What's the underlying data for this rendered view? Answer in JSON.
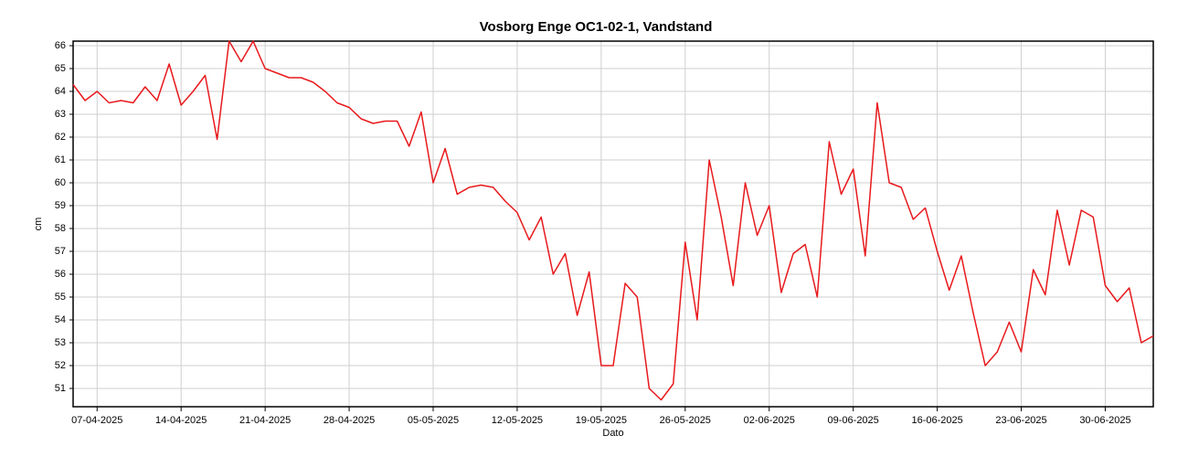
{
  "chart_data": {
    "type": "line",
    "title": "Vosborg Enge OC1-02-1, Vandstand",
    "x_label": "Dato",
    "y_label": "cm",
    "x": [
      "05-04-2025",
      "06-04-2025",
      "07-04-2025",
      "08-04-2025",
      "09-04-2025",
      "10-04-2025",
      "11-04-2025",
      "12-04-2025",
      "13-04-2025",
      "14-04-2025",
      "15-04-2025",
      "16-04-2025",
      "17-04-2025",
      "18-04-2025",
      "19-04-2025",
      "20-04-2025",
      "21-04-2025",
      "22-04-2025",
      "23-04-2025",
      "24-04-2025",
      "25-04-2025",
      "26-04-2025",
      "27-04-2025",
      "28-04-2025",
      "29-04-2025",
      "30-04-2025",
      "01-05-2025",
      "02-05-2025",
      "03-05-2025",
      "04-05-2025",
      "05-05-2025",
      "06-05-2025",
      "07-05-2025",
      "08-05-2025",
      "09-05-2025",
      "10-05-2025",
      "11-05-2025",
      "12-05-2025",
      "13-05-2025",
      "14-05-2025",
      "15-05-2025",
      "16-05-2025",
      "17-05-2025",
      "18-05-2025",
      "19-05-2025",
      "20-05-2025",
      "21-05-2025",
      "22-05-2025",
      "23-05-2025",
      "24-05-2025",
      "25-05-2025",
      "26-05-2025",
      "27-05-2025",
      "28-05-2025",
      "29-05-2025",
      "30-05-2025",
      "31-05-2025",
      "01-06-2025",
      "02-06-2025",
      "03-06-2025",
      "04-06-2025",
      "05-06-2025",
      "06-06-2025",
      "07-06-2025",
      "08-06-2025",
      "09-06-2025",
      "10-06-2025",
      "11-06-2025",
      "12-06-2025",
      "13-06-2025",
      "14-06-2025",
      "15-06-2025",
      "16-06-2025",
      "17-06-2025",
      "18-06-2025",
      "19-06-2025",
      "20-06-2025",
      "21-06-2025",
      "22-06-2025",
      "23-06-2025",
      "24-06-2025",
      "25-06-2025",
      "26-06-2025",
      "27-06-2025",
      "28-06-2025",
      "29-06-2025",
      "30-06-2025",
      "01-07-2025",
      "02-07-2025",
      "03-07-2025",
      "04-07-2025"
    ],
    "series": [
      {
        "name": "Vandstand",
        "color": "#e8191c",
        "values": [
          64.3,
          63.6,
          64.0,
          63.5,
          63.6,
          63.5,
          64.2,
          63.6,
          65.2,
          63.4,
          64.0,
          64.7,
          61.9,
          66.2,
          65.3,
          66.2,
          65.0,
          64.8,
          64.6,
          64.6,
          64.4,
          64.0,
          63.5,
          63.3,
          62.8,
          62.6,
          62.7,
          62.7,
          61.6,
          63.1,
          60.0,
          61.5,
          59.5,
          59.8,
          59.9,
          59.8,
          59.2,
          58.7,
          57.5,
          58.5,
          56.0,
          56.9,
          54.2,
          56.1,
          52.0,
          52.0,
          55.6,
          55.0,
          51.0,
          50.5,
          51.2,
          57.4,
          54.0,
          61.0,
          58.5,
          55.5,
          60.0,
          57.7,
          59.0,
          55.2,
          56.9,
          57.3,
          55.0,
          61.8,
          59.5,
          60.6,
          56.8,
          63.5,
          60.0,
          59.8,
          58.4,
          58.9,
          57.0,
          55.3,
          56.8,
          54.3,
          52.0,
          52.6,
          53.9,
          52.6,
          56.2,
          55.1,
          58.8,
          56.4,
          58.8,
          58.5,
          55.5,
          54.8,
          55.4,
          53.0,
          53.3
        ]
      }
    ],
    "xlim": [
      "05-04-2025",
      "04-07-2025"
    ],
    "xticks": [
      "07-04-2025",
      "14-04-2025",
      "21-04-2025",
      "28-04-2025",
      "05-05-2025",
      "12-05-2025",
      "19-05-2025",
      "26-05-2025",
      "02-06-2025",
      "09-06-2025",
      "16-06-2025",
      "23-06-2025",
      "30-06-2025"
    ],
    "ylim": [
      50.2,
      66.2
    ],
    "yticks": [
      51,
      52,
      53,
      54,
      55,
      56,
      57,
      58,
      59,
      60,
      61,
      62,
      63,
      64,
      65,
      66
    ],
    "grid": true
  }
}
